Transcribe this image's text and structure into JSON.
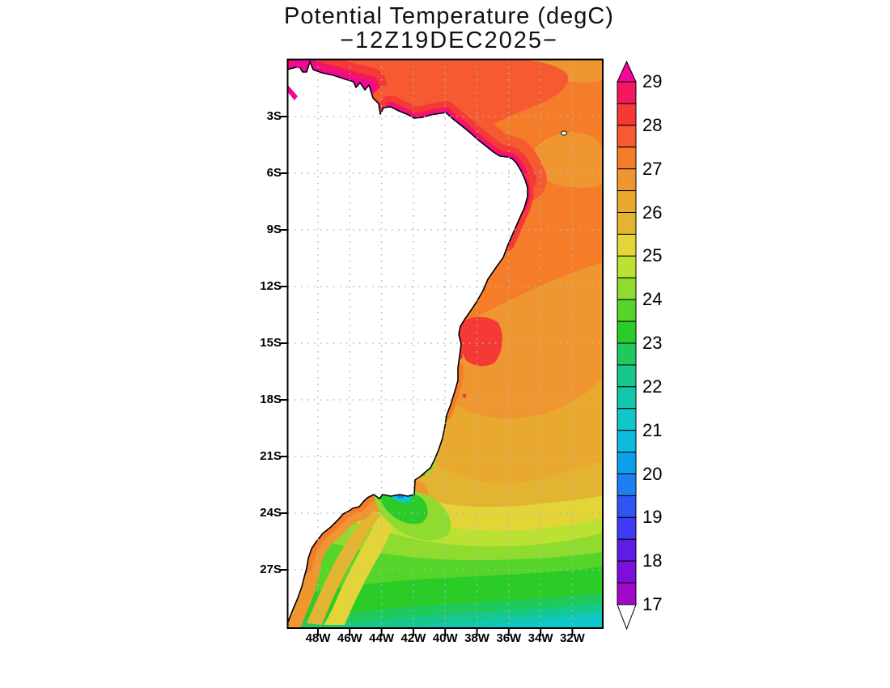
{
  "title": {
    "line1": "Potential Temperature (degC)",
    "line2": "−12Z19DEC2025−"
  },
  "map": {
    "y_tick_labels": [
      "3S",
      "6S",
      "9S",
      "12S",
      "15S",
      "18S",
      "21S",
      "24S",
      "27S"
    ],
    "x_tick_labels": [
      "48W",
      "46W",
      "44W",
      "42W",
      "40W",
      "38W",
      "36W",
      "34W",
      "32W"
    ],
    "land_color": "#FFFFFF",
    "coast_color": "#000000",
    "grid_color": "#B5B5B5",
    "border_color": "#000000",
    "island_name": "small-offshore-island"
  },
  "colorbar": {
    "labels": [
      "29",
      "28",
      "27",
      "26",
      "25",
      "24",
      "23",
      "22",
      "21",
      "20",
      "19",
      "18",
      "17"
    ],
    "segment_step_degC": 0.5,
    "colors_top_to_bottom": [
      "#F2175F",
      "#F43937",
      "#F55A31",
      "#F57C28",
      "#EF9630",
      "#E8A92E",
      "#E2B431",
      "#E3D538",
      "#BCE135",
      "#8FDB2F",
      "#55D42A",
      "#2BCB28",
      "#1FC95B",
      "#17C88C",
      "#12C7AE",
      "#0FC6C9",
      "#0DBBDB",
      "#0DA0EA",
      "#1E7FF2",
      "#2E54F3",
      "#3F3BF2",
      "#5F1DE4",
      "#7F0EDA",
      "#A108C9"
    ],
    "over_color": "#F2079B",
    "under_color": "#FFFFFF",
    "outline_color": "#000000"
  },
  "chart_data": {
    "type": "heatmap",
    "title": "Potential Temperature (degC)",
    "subtitle": "−12Z19DEC2025−",
    "units": "degC",
    "x_axis": {
      "label": "longitude",
      "tick_labels": [
        "48W",
        "46W",
        "44W",
        "42W",
        "40W",
        "38W",
        "36W",
        "34W",
        "32W"
      ],
      "range": [
        "50W",
        "30W"
      ]
    },
    "y_axis": {
      "label": "latitude",
      "tick_labels": [
        "3S",
        "6S",
        "9S",
        "12S",
        "15S",
        "18S",
        "21S",
        "24S",
        "27S"
      ],
      "range": [
        "0",
        "30S"
      ]
    },
    "color_scale": {
      "min": 17,
      "max": 29,
      "label_interval": 1,
      "segment_interval": 0.5,
      "over_arrow": "magenta",
      "under_arrow": "white"
    },
    "field_description": "Sea potential temperature off the east coast of Brazil; land masked in white; warmest water (28.5-29+ degC, pink/red) hugs the equatorial north coast and upper northeast coast; broad 27-28 degC orange water from the equator to about 12S; gradual southward cooling through 26-25 degC (amber/yellow) between 15S and 22S; a cold coastal upwelling pocket (~20-22 degC, cyan/blue) near 23S at the Cabo Frio step; 23-24 degC green water south of 24S; 21-22 degC teal/cyan water along the southern edge near 30S; a warm 27 degC orange tongue follows the southwest coast between 22S and 27S",
    "approx_sst_by_latitude": [
      {
        "lat": "0",
        "degC": 28.8
      },
      {
        "lat": "3S",
        "degC": 27.8
      },
      {
        "lat": "6S",
        "degC": 27.5
      },
      {
        "lat": "9S",
        "degC": 27.3
      },
      {
        "lat": "12S",
        "degC": 27.0
      },
      {
        "lat": "15S",
        "degC": 26.5
      },
      {
        "lat": "18S",
        "degC": 26.0
      },
      {
        "lat": "21S",
        "degC": 25.3
      },
      {
        "lat": "24S",
        "degC": 24.3
      },
      {
        "lat": "27S",
        "degC": 23.3
      },
      {
        "lat": "30S",
        "degC": 21.7
      }
    ],
    "notable_features": [
      "magenta 29+ degC ribbon along the equatorial coastline",
      "red 28-28.5 degC band offshore of the north and northeast coasts",
      "red 28 degC eddy offshore near 13S",
      "cold upwelling spot with 20-22 degC water at the coast near 23S (Cabo Frio)",
      "warm 27 degC coastal band from 22S to 27S",
      "small white island dot near 32.5W 4S (Fernando de Noronha)",
      "cyan 21.5-22 degC water across the bottom of the domain near 30S"
    ]
  }
}
